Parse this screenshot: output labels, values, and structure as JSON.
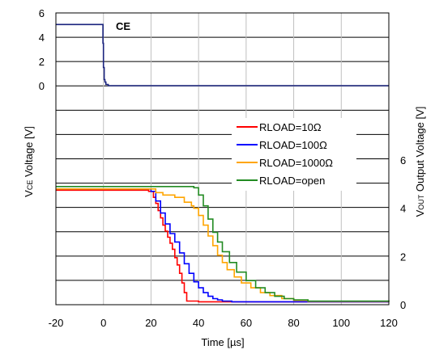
{
  "chart_data": {
    "type": "line",
    "xlabel": "Time [µs]",
    "x_ticks": [
      "-20",
      "0",
      "20",
      "40",
      "60",
      "80",
      "100",
      "120"
    ],
    "xlim": [
      -20,
      120
    ],
    "upper_panel": {
      "ylabel": "Vce Voltage [V]",
      "ylabel_parts": {
        "pre": "V",
        "sub": "CE",
        "post": " Voltage [V]"
      },
      "annotation": "CE",
      "y_ticks": [
        "0",
        "2",
        "4",
        "6"
      ],
      "ylim": [
        0,
        6
      ],
      "series": [
        {
          "color": "#1a237e",
          "x": [
            -20,
            -0.5,
            -0.2,
            0,
            0.3,
            0.6,
            1,
            2,
            120
          ],
          "y": [
            5.05,
            5.05,
            3.5,
            1.5,
            0.5,
            0.3,
            0.1,
            0.0,
            0.0
          ]
        }
      ]
    },
    "lower_panel": {
      "ylabel": "Vout Output Voltage [V]",
      "ylabel_parts": {
        "pre": "V",
        "sub": "OUT",
        "post": " Output Voltage [V]"
      },
      "y_ticks": [
        "0",
        "2",
        "4",
        "6"
      ],
      "ylim": [
        0,
        6
      ],
      "legend": {
        "position": "top-right"
      },
      "series": [
        {
          "name": "RLOAD=10Ω",
          "color": "#ff0000",
          "x": [
            -20,
            18,
            19,
            21,
            22,
            23,
            24,
            25,
            26,
            27,
            28,
            29,
            30,
            31,
            32,
            33,
            34,
            35,
            40,
            50,
            60,
            120
          ],
          "y": [
            4.75,
            4.75,
            4.7,
            4.45,
            4.2,
            3.9,
            3.6,
            3.3,
            3.05,
            2.8,
            2.55,
            2.3,
            1.95,
            1.65,
            1.3,
            0.9,
            0.5,
            0.15,
            0.12,
            0.12,
            0.12,
            0.12
          ]
        },
        {
          "name": "RLOAD=100Ω",
          "color": "#0000ff",
          "x": [
            -20,
            19,
            20,
            22,
            24,
            26,
            28,
            30,
            32,
            34,
            36,
            38,
            40,
            42,
            44,
            46,
            48,
            50,
            54,
            60,
            120
          ],
          "y": [
            4.8,
            4.8,
            4.7,
            4.3,
            3.8,
            3.35,
            2.95,
            2.6,
            2.15,
            1.7,
            1.3,
            0.95,
            0.7,
            0.5,
            0.35,
            0.25,
            0.2,
            0.15,
            0.12,
            0.12,
            0.12
          ]
        },
        {
          "name": "RLOAD=1000Ω",
          "color": "#ffa500",
          "x": [
            -20,
            20,
            22,
            25,
            30,
            34,
            37,
            38,
            40,
            42,
            44,
            46,
            48,
            50,
            52,
            55,
            58,
            62,
            66,
            70,
            75,
            80,
            86,
            120
          ],
          "y": [
            4.8,
            4.8,
            4.65,
            4.55,
            4.45,
            4.25,
            4.1,
            4.0,
            3.7,
            3.3,
            2.85,
            2.45,
            2.05,
            1.75,
            1.45,
            1.15,
            0.9,
            0.7,
            0.5,
            0.38,
            0.25,
            0.18,
            0.14,
            0.12
          ]
        },
        {
          "name": "RLOAD=open",
          "color": "#228b22",
          "x": [
            -20,
            37,
            38,
            40,
            42,
            44,
            46,
            48,
            50,
            53,
            56,
            60,
            64,
            68,
            72,
            76,
            80,
            86,
            120
          ],
          "y": [
            4.9,
            4.9,
            4.85,
            4.55,
            4.1,
            3.55,
            3.0,
            2.6,
            2.2,
            1.75,
            1.35,
            1.0,
            0.7,
            0.5,
            0.35,
            0.25,
            0.2,
            0.15,
            0.12
          ]
        }
      ]
    }
  }
}
